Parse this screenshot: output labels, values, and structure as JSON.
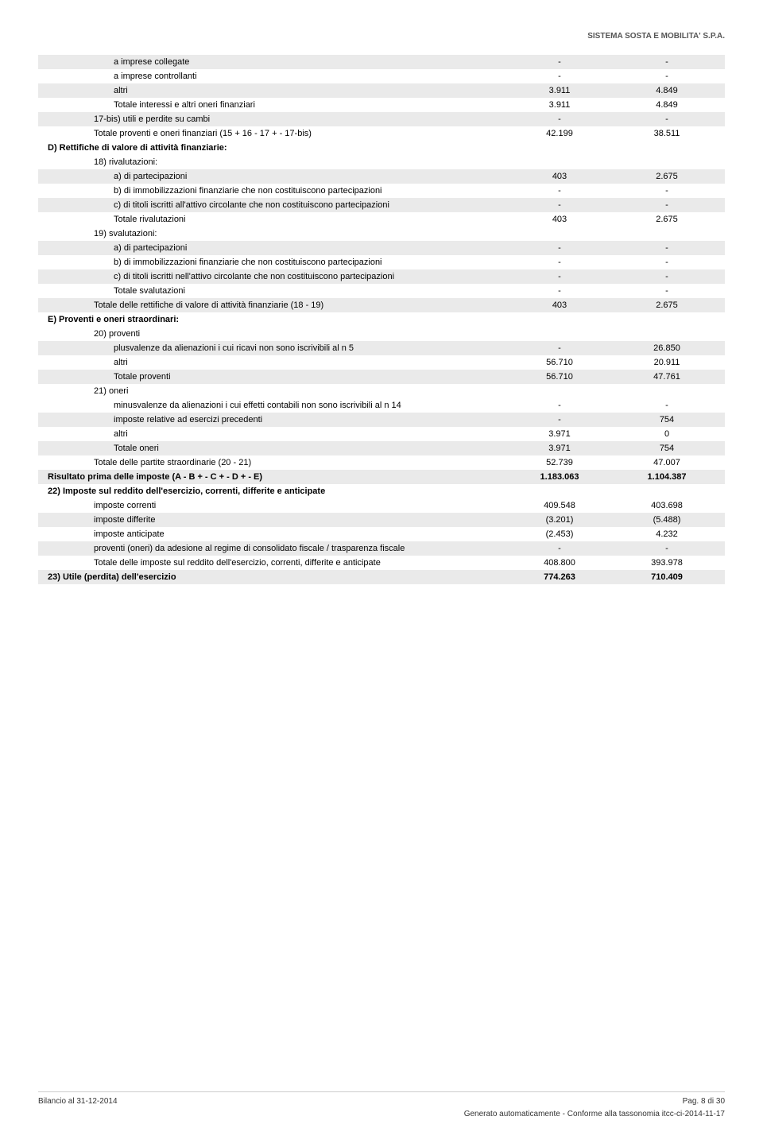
{
  "header": {
    "company": "SISTEMA SOSTA E MOBILITA' S.P.A."
  },
  "rows": [
    {
      "indent": 3,
      "shaded": true,
      "label": "a imprese collegate",
      "c1": "-",
      "c2": "-"
    },
    {
      "indent": 3,
      "shaded": false,
      "label": "a imprese controllanti",
      "c1": "-",
      "c2": "-"
    },
    {
      "indent": 3,
      "shaded": true,
      "label": "altri",
      "c1": "3.911",
      "c2": "4.849"
    },
    {
      "indent": 3,
      "shaded": false,
      "label": "Totale interessi e altri oneri finanziari",
      "c1": "3.911",
      "c2": "4.849"
    },
    {
      "indent": 2,
      "shaded": true,
      "label": "17-bis) utili e perdite su cambi",
      "c1": "-",
      "c2": "-"
    },
    {
      "indent": 2,
      "shaded": false,
      "label": "Totale proventi e oneri finanziari (15 + 16 - 17 + - 17-bis)",
      "c1": "42.199",
      "c2": "38.511"
    },
    {
      "indent": 1,
      "bold": true,
      "shaded": false,
      "label": "D) Rettifiche di valore di attività finanziarie:",
      "c1": "",
      "c2": ""
    },
    {
      "indent": 2,
      "shaded": false,
      "label": "18) rivalutazioni:",
      "c1": "",
      "c2": ""
    },
    {
      "indent": 3,
      "shaded": true,
      "label": "a) di partecipazioni",
      "c1": "403",
      "c2": "2.675"
    },
    {
      "indent": 3,
      "shaded": false,
      "label": "b) di immobilizzazioni finanziarie che non costituiscono partecipazioni",
      "c1": "-",
      "c2": "-"
    },
    {
      "indent": 3,
      "shaded": true,
      "label": "c) di titoli iscritti all'attivo circolante che non costituiscono partecipazioni",
      "c1": "-",
      "c2": "-"
    },
    {
      "indent": 3,
      "shaded": false,
      "label": "Totale rivalutazioni",
      "c1": "403",
      "c2": "2.675"
    },
    {
      "indent": 2,
      "shaded": false,
      "label": "19) svalutazioni:",
      "c1": "",
      "c2": ""
    },
    {
      "indent": 3,
      "shaded": true,
      "label": "a) di partecipazioni",
      "c1": "-",
      "c2": "-"
    },
    {
      "indent": 3,
      "shaded": false,
      "label": "b) di immobilizzazioni finanziarie che non costituiscono partecipazioni",
      "c1": "-",
      "c2": "-"
    },
    {
      "indent": 3,
      "shaded": true,
      "label": "c) di titoli iscritti nell'attivo circolante che non costituiscono partecipazioni",
      "c1": "-",
      "c2": "-"
    },
    {
      "indent": 3,
      "shaded": false,
      "label": "Totale svalutazioni",
      "c1": "-",
      "c2": "-"
    },
    {
      "indent": 2,
      "shaded": true,
      "label": "Totale delle rettifiche di valore di attività finanziarie (18 - 19)",
      "c1": "403",
      "c2": "2.675"
    },
    {
      "indent": 1,
      "bold": true,
      "shaded": false,
      "label": "E) Proventi e oneri straordinari:",
      "c1": "",
      "c2": ""
    },
    {
      "indent": 2,
      "shaded": false,
      "label": "20) proventi",
      "c1": "",
      "c2": ""
    },
    {
      "indent": 3,
      "shaded": true,
      "label": "plusvalenze da alienazioni i cui ricavi non sono iscrivibili al n 5",
      "c1": "-",
      "c2": "26.850"
    },
    {
      "indent": 3,
      "shaded": false,
      "label": "altri",
      "c1": "56.710",
      "c2": "20.911"
    },
    {
      "indent": 3,
      "shaded": true,
      "label": "Totale proventi",
      "c1": "56.710",
      "c2": "47.761"
    },
    {
      "indent": 2,
      "shaded": false,
      "label": "21) oneri",
      "c1": "",
      "c2": ""
    },
    {
      "indent": 3,
      "shaded": false,
      "label": "minusvalenze da alienazioni i cui effetti contabili non sono iscrivibili al n 14",
      "c1": "-",
      "c2": "-"
    },
    {
      "indent": 3,
      "shaded": true,
      "label": "imposte relative ad esercizi precedenti",
      "c1": "-",
      "c2": "754"
    },
    {
      "indent": 3,
      "shaded": false,
      "label": "altri",
      "c1": "3.971",
      "c2": "0"
    },
    {
      "indent": 3,
      "shaded": true,
      "label": "Totale oneri",
      "c1": "3.971",
      "c2": "754"
    },
    {
      "indent": 2,
      "shaded": false,
      "label": "Totale delle partite straordinarie (20 - 21)",
      "c1": "52.739",
      "c2": "47.007"
    },
    {
      "indent": 1,
      "bold": true,
      "shaded": true,
      "label": "Risultato prima delle imposte (A - B + - C + - D + - E)",
      "c1": "1.183.063",
      "c2": "1.104.387"
    },
    {
      "indent": 1,
      "bold": true,
      "shaded": false,
      "label": "22) Imposte sul reddito dell'esercizio, correnti, differite e anticipate",
      "c1": "",
      "c2": ""
    },
    {
      "indent": 2,
      "shaded": false,
      "label": "imposte correnti",
      "c1": "409.548",
      "c2": "403.698"
    },
    {
      "indent": 2,
      "shaded": true,
      "label": "imposte differite",
      "c1": "(3.201)",
      "c2": "(5.488)"
    },
    {
      "indent": 2,
      "shaded": false,
      "label": "imposte anticipate",
      "c1": "(2.453)",
      "c2": "4.232"
    },
    {
      "indent": 2,
      "shaded": true,
      "label": "proventi (oneri) da adesione al regime di consolidato fiscale / trasparenza fiscale",
      "c1": "-",
      "c2": "-"
    },
    {
      "indent": 2,
      "shaded": false,
      "label": "Totale delle imposte sul reddito dell'esercizio, correnti, differite e anticipate",
      "c1": "408.800",
      "c2": "393.978"
    },
    {
      "indent": 1,
      "bold": true,
      "shaded": true,
      "label": "23) Utile (perdita) dell'esercizio",
      "c1": "774.263",
      "c2": "710.409"
    }
  ],
  "footer": {
    "left": "Bilancio al 31-12-2014",
    "right": "Pag. 8 di 30",
    "sub": "Generato automaticamente - Conforme alla tassonomia itcc-ci-2014-11-17"
  },
  "style": {
    "shaded_bg": "#eaeaea",
    "text_color": "#000000",
    "font_size_body": 11,
    "font_size_header": 10
  }
}
